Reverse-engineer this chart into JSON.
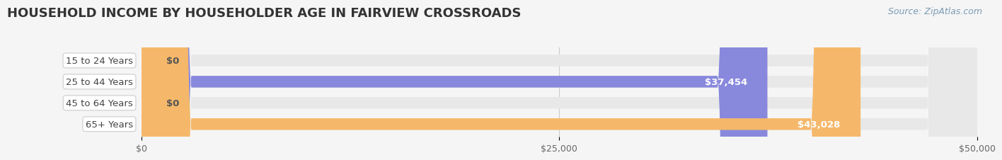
{
  "title": "HOUSEHOLD INCOME BY HOUSEHOLDER AGE IN FAIRVIEW CROSSROADS",
  "source_text": "Source: ZipAtlas.com",
  "categories": [
    "15 to 24 Years",
    "25 to 44 Years",
    "45 to 64 Years",
    "65+ Years"
  ],
  "values": [
    0,
    37454,
    0,
    43028
  ],
  "bar_colors": [
    "#7dd4cc",
    "#8888dd",
    "#f0a0b8",
    "#f5b86a"
  ],
  "label_colors": [
    "#555555",
    "#ffffff",
    "#555555",
    "#ffffff"
  ],
  "value_labels": [
    "$0",
    "$37,454",
    "$0",
    "$43,028"
  ],
  "xlim": [
    0,
    50000
  ],
  "xticks": [
    0,
    25000,
    50000
  ],
  "xticklabels": [
    "$0",
    "$25,000",
    "$50,000"
  ],
  "bg_color": "#f5f5f5",
  "bar_bg_color": "#e8e8e8",
  "title_fontsize": 13,
  "source_fontsize": 9,
  "bar_height": 0.55,
  "label_fontsize": 9.5
}
